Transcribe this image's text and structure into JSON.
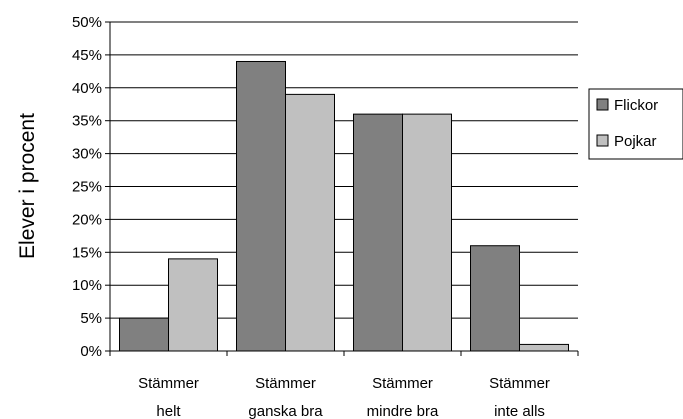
{
  "chart_data": {
    "type": "bar",
    "ylabel": "Elever i procent",
    "ylim": [
      0,
      50
    ],
    "yticks": [
      "0%",
      "5%",
      "10%",
      "15%",
      "20%",
      "25%",
      "30%",
      "35%",
      "40%",
      "45%",
      "50%"
    ],
    "categories": [
      [
        "Stämmer",
        "helt"
      ],
      [
        "Stämmer",
        "ganska bra"
      ],
      [
        "Stämmer",
        "mindre bra"
      ],
      [
        "Stämmer",
        "inte alls"
      ]
    ],
    "series": [
      {
        "name": "Flickor",
        "values": [
          5,
          44,
          36,
          16
        ],
        "color": "#808080"
      },
      {
        "name": "Pojkar",
        "values": [
          14,
          39,
          36,
          1
        ],
        "color": "#c0c0c0"
      }
    ],
    "grid": true,
    "legend": "right"
  }
}
